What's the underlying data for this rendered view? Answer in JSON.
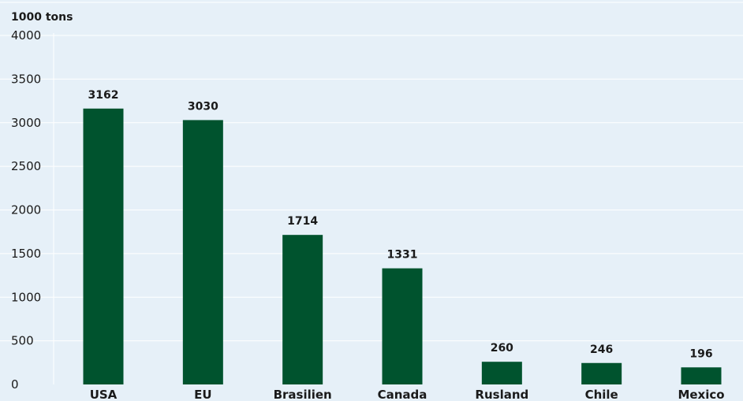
{
  "chart_data": {
    "type": "bar",
    "unit_label": "1000 tons",
    "categories": [
      "USA",
      "EU",
      "Brasilien",
      "Canada",
      "Rusland",
      "Chile",
      "Mexico"
    ],
    "values": [
      3162,
      3030,
      1714,
      1331,
      260,
      246,
      196
    ],
    "ylim": [
      0,
      4000
    ],
    "yticks": [
      0,
      500,
      1000,
      1500,
      2000,
      2500,
      3000,
      3500,
      4000
    ],
    "grid": true,
    "legend": "none",
    "colors": {
      "bar": "#00532e",
      "background": "#e6f0f8",
      "grid": "#ffffff"
    }
  }
}
